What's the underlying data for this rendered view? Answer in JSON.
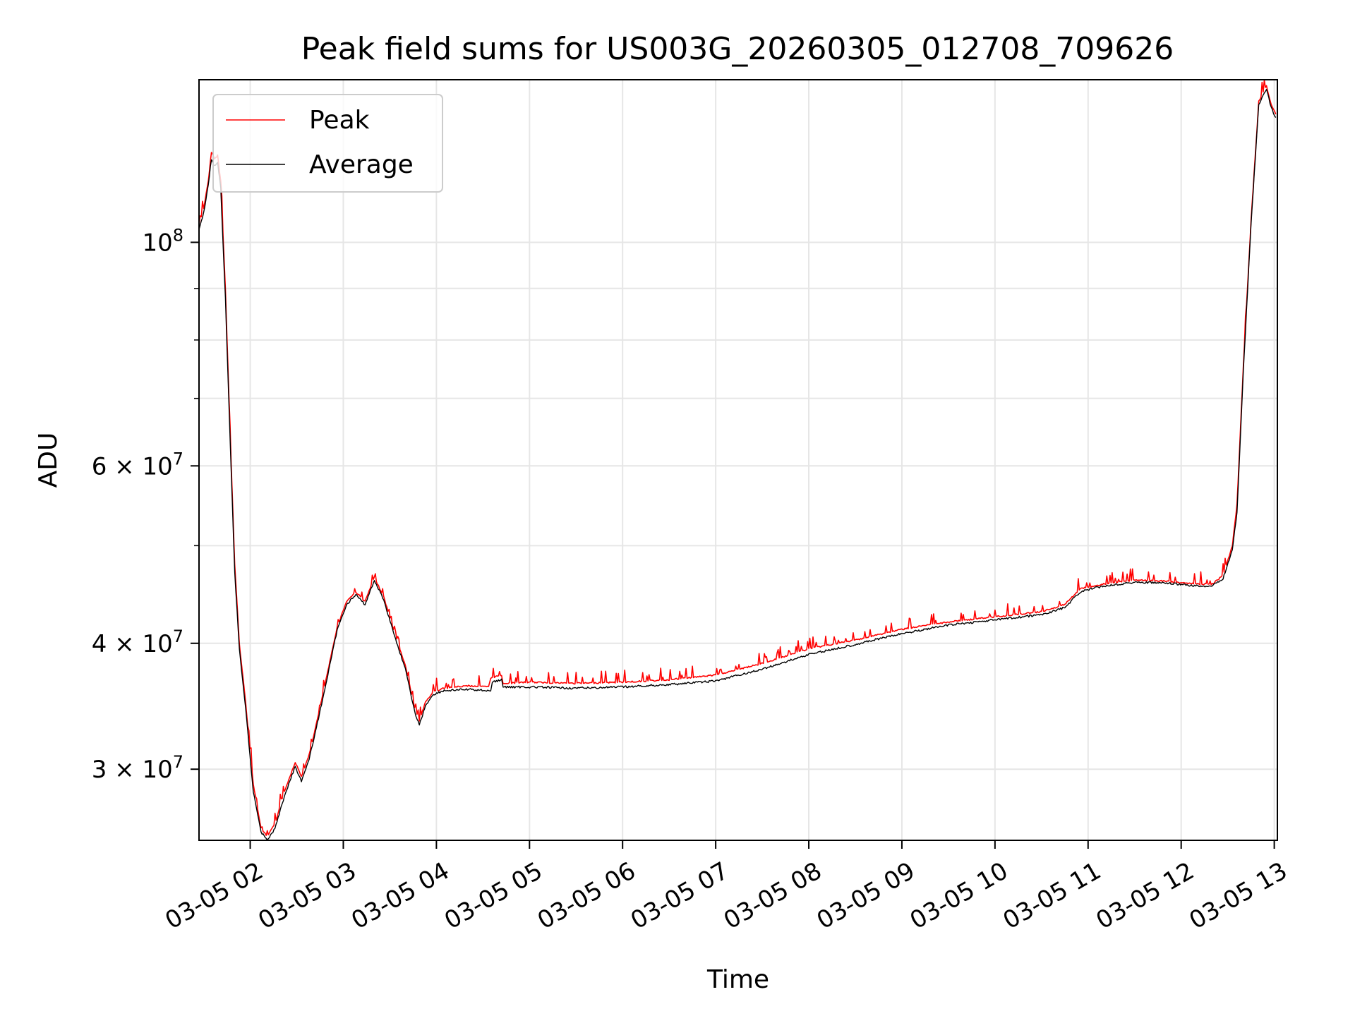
{
  "chart_data": {
    "type": "line",
    "title": "Peak field sums for US003G_20260305_012708_709626",
    "xlabel": "Time",
    "ylabel": "ADU",
    "yscale": "log",
    "xlim": [
      "2026-03-05 01:27",
      "2026-03-05 13:02"
    ],
    "ylim": [
      25500000,
      145000000
    ],
    "grid": true,
    "legend_position": "top-left",
    "x_tick_labels": [
      {
        "t": "2026-03-05 02:00",
        "label": "03-05 02"
      },
      {
        "t": "2026-03-05 03:00",
        "label": "03-05 03"
      },
      {
        "t": "2026-03-05 04:00",
        "label": "03-05 04"
      },
      {
        "t": "2026-03-05 05:00",
        "label": "03-05 05"
      },
      {
        "t": "2026-03-05 06:00",
        "label": "03-05 06"
      },
      {
        "t": "2026-03-05 07:00",
        "label": "03-05 07"
      },
      {
        "t": "2026-03-05 08:00",
        "label": "03-05 08"
      },
      {
        "t": "2026-03-05 09:00",
        "label": "03-05 09"
      },
      {
        "t": "2026-03-05 10:00",
        "label": "03-05 10"
      },
      {
        "t": "2026-03-05 11:00",
        "label": "03-05 11"
      },
      {
        "t": "2026-03-05 12:00",
        "label": "03-05 12"
      },
      {
        "t": "2026-03-05 13:00",
        "label": "03-05 13"
      }
    ],
    "y_major_ticks": [
      {
        "v": 100000000,
        "base": "10",
        "exp": "8"
      },
      {
        "v": 60000000,
        "base": "6 × 10",
        "exp": "7"
      },
      {
        "v": 40000000,
        "base": "4 × 10",
        "exp": "7"
      },
      {
        "v": 30000000,
        "base": "3 × 10",
        "exp": "7"
      }
    ],
    "y_minor_ticks": [
      50000000,
      70000000,
      80000000,
      90000000
    ],
    "series": [
      {
        "name": "Peak",
        "color": "#ff0000",
        "spiky": true,
        "points": [
          [
            "2026-03-05 01:27",
            104000000
          ],
          [
            "2026-03-05 01:30",
            108000000
          ],
          [
            "2026-03-05 01:33",
            115000000
          ],
          [
            "2026-03-05 01:35",
            123000000
          ],
          [
            "2026-03-05 01:37",
            121000000
          ],
          [
            "2026-03-05 01:39",
            122000000
          ],
          [
            "2026-03-05 01:41",
            115000000
          ],
          [
            "2026-03-05 01:44",
            90000000
          ],
          [
            "2026-03-05 01:47",
            65000000
          ],
          [
            "2026-03-05 01:50",
            48000000
          ],
          [
            "2026-03-05 01:53",
            40000000
          ],
          [
            "2026-03-05 01:57",
            35000000
          ],
          [
            "2026-03-05 02:02",
            29000000
          ],
          [
            "2026-03-05 02:07",
            26200000
          ],
          [
            "2026-03-05 02:11",
            25700000
          ],
          [
            "2026-03-05 02:16",
            26500000
          ],
          [
            "2026-03-05 02:22",
            28500000
          ],
          [
            "2026-03-05 02:29",
            30500000
          ],
          [
            "2026-03-05 02:33",
            29500000
          ],
          [
            "2026-03-05 02:38",
            31000000
          ],
          [
            "2026-03-05 02:44",
            34000000
          ],
          [
            "2026-03-05 02:50",
            37500000
          ],
          [
            "2026-03-05 02:56",
            41500000
          ],
          [
            "2026-03-05 03:02",
            44000000
          ],
          [
            "2026-03-05 03:08",
            45000000
          ],
          [
            "2026-03-05 03:14",
            44000000
          ],
          [
            "2026-03-05 03:20",
            46500000
          ],
          [
            "2026-03-05 03:26",
            44500000
          ],
          [
            "2026-03-05 03:33",
            41000000
          ],
          [
            "2026-03-05 03:40",
            38000000
          ],
          [
            "2026-03-05 03:46",
            34500000
          ],
          [
            "2026-03-05 03:49",
            33500000
          ],
          [
            "2026-03-05 03:53",
            35000000
          ],
          [
            "2026-03-05 03:58",
            35800000
          ],
          [
            "2026-03-05 04:05",
            36100000
          ],
          [
            "2026-03-05 04:20",
            36300000
          ],
          [
            "2026-03-05 04:35",
            36200000
          ],
          [
            "2026-03-05 04:36",
            37000000
          ],
          [
            "2026-03-05 04:42",
            37200000
          ],
          [
            "2026-03-05 04:43",
            36500000
          ],
          [
            "2026-03-05 05:00",
            36600000
          ],
          [
            "2026-03-05 05:30",
            36500000
          ],
          [
            "2026-03-05 06:00",
            36600000
          ],
          [
            "2026-03-05 06:30",
            36800000
          ],
          [
            "2026-03-05 07:00",
            37200000
          ],
          [
            "2026-03-05 07:30",
            38200000
          ],
          [
            "2026-03-05 08:00",
            39500000
          ],
          [
            "2026-03-05 08:30",
            40300000
          ],
          [
            "2026-03-05 09:00",
            41300000
          ],
          [
            "2026-03-05 09:30",
            42000000
          ],
          [
            "2026-03-05 10:00",
            42500000
          ],
          [
            "2026-03-05 10:30",
            43000000
          ],
          [
            "2026-03-05 10:45",
            43700000
          ],
          [
            "2026-03-05 10:55",
            45300000
          ],
          [
            "2026-03-05 11:10",
            45800000
          ],
          [
            "2026-03-05 11:30",
            46200000
          ],
          [
            "2026-03-05 11:50",
            46100000
          ],
          [
            "2026-03-05 12:10",
            45800000
          ],
          [
            "2026-03-05 12:20",
            45800000
          ],
          [
            "2026-03-05 12:27",
            46700000
          ],
          [
            "2026-03-05 12:33",
            50000000
          ],
          [
            "2026-03-05 12:36",
            55000000
          ],
          [
            "2026-03-05 12:40",
            75000000
          ],
          [
            "2026-03-05 12:45",
            105000000
          ],
          [
            "2026-03-05 12:50",
            138000000
          ],
          [
            "2026-03-05 12:55",
            143000000
          ],
          [
            "2026-03-05 12:58",
            137000000
          ],
          [
            "2026-03-05 13:01",
            134000000
          ]
        ]
      },
      {
        "name": "Average",
        "color": "#000000",
        "spiky": false,
        "points": [
          [
            "2026-03-05 01:27",
            103000000
          ],
          [
            "2026-03-05 01:30",
            107000000
          ],
          [
            "2026-03-05 01:33",
            114000000
          ],
          [
            "2026-03-05 01:35",
            121000000
          ],
          [
            "2026-03-05 01:37",
            119000000
          ],
          [
            "2026-03-05 01:39",
            120000000
          ],
          [
            "2026-03-05 01:41",
            113000000
          ],
          [
            "2026-03-05 01:44",
            88000000
          ],
          [
            "2026-03-05 01:47",
            64000000
          ],
          [
            "2026-03-05 01:50",
            47000000
          ],
          [
            "2026-03-05 01:53",
            39500000
          ],
          [
            "2026-03-05 01:57",
            34500000
          ],
          [
            "2026-03-05 02:02",
            28500000
          ],
          [
            "2026-03-05 02:07",
            26000000
          ],
          [
            "2026-03-05 02:11",
            25500000
          ],
          [
            "2026-03-05 02:16",
            26200000
          ],
          [
            "2026-03-05 02:22",
            28200000
          ],
          [
            "2026-03-05 02:29",
            30200000
          ],
          [
            "2026-03-05 02:33",
            29200000
          ],
          [
            "2026-03-05 02:38",
            30700000
          ],
          [
            "2026-03-05 02:44",
            33700000
          ],
          [
            "2026-03-05 02:50",
            37200000
          ],
          [
            "2026-03-05 02:56",
            41200000
          ],
          [
            "2026-03-05 03:02",
            43700000
          ],
          [
            "2026-03-05 03:08",
            44700000
          ],
          [
            "2026-03-05 03:14",
            43700000
          ],
          [
            "2026-03-05 03:20",
            46200000
          ],
          [
            "2026-03-05 03:26",
            44200000
          ],
          [
            "2026-03-05 03:33",
            40700000
          ],
          [
            "2026-03-05 03:40",
            37700000
          ],
          [
            "2026-03-05 03:46",
            34200000
          ],
          [
            "2026-03-05 03:49",
            33200000
          ],
          [
            "2026-03-05 03:53",
            34700000
          ],
          [
            "2026-03-05 03:58",
            35600000
          ],
          [
            "2026-03-05 04:05",
            35900000
          ],
          [
            "2026-03-05 04:20",
            36000000
          ],
          [
            "2026-03-05 04:35",
            35900000
          ],
          [
            "2026-03-05 04:36",
            36600000
          ],
          [
            "2026-03-05 04:42",
            36800000
          ],
          [
            "2026-03-05 04:43",
            36200000
          ],
          [
            "2026-03-05 05:00",
            36200000
          ],
          [
            "2026-03-05 05:30",
            36100000
          ],
          [
            "2026-03-05 06:00",
            36200000
          ],
          [
            "2026-03-05 06:30",
            36400000
          ],
          [
            "2026-03-05 07:00",
            36700000
          ],
          [
            "2026-03-05 07:30",
            37700000
          ],
          [
            "2026-03-05 08:00",
            39000000
          ],
          [
            "2026-03-05 08:30",
            39900000
          ],
          [
            "2026-03-05 09:00",
            40900000
          ],
          [
            "2026-03-05 09:30",
            41700000
          ],
          [
            "2026-03-05 10:00",
            42200000
          ],
          [
            "2026-03-05 10:30",
            42700000
          ],
          [
            "2026-03-05 10:45",
            43400000
          ],
          [
            "2026-03-05 10:55",
            45000000
          ],
          [
            "2026-03-05 11:10",
            45600000
          ],
          [
            "2026-03-05 11:30",
            46000000
          ],
          [
            "2026-03-05 11:50",
            45900000
          ],
          [
            "2026-03-05 12:10",
            45600000
          ],
          [
            "2026-03-05 12:20",
            45600000
          ],
          [
            "2026-03-05 12:27",
            46400000
          ],
          [
            "2026-03-05 12:33",
            49500000
          ],
          [
            "2026-03-05 12:36",
            54000000
          ],
          [
            "2026-03-05 12:40",
            74000000
          ],
          [
            "2026-03-05 12:45",
            104000000
          ],
          [
            "2026-03-05 12:50",
            137000000
          ],
          [
            "2026-03-05 12:55",
            142000000
          ],
          [
            "2026-03-05 12:58",
            136000000
          ],
          [
            "2026-03-05 13:01",
            133000000
          ]
        ]
      }
    ]
  }
}
